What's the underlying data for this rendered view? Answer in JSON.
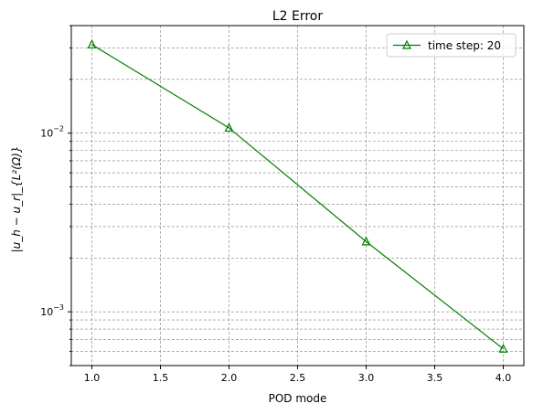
{
  "chart_data": {
    "type": "line",
    "title": "L2 Error",
    "xlabel": "POD mode",
    "ylabel": "|u_h − u_r|_{L²(Ω)}",
    "yscale": "log",
    "xlim": [
      0.85,
      4.15
    ],
    "ylim": [
      0.0005,
      0.04
    ],
    "x_ticks": [
      "1.0",
      "1.5",
      "2.0",
      "2.5",
      "3.0",
      "3.5",
      "4.0"
    ],
    "y_tick_labels": [
      {
        "base": "10",
        "exp": "−3"
      },
      {
        "base": "10",
        "exp": "−2"
      }
    ],
    "grid": true,
    "legend_position": "top-right",
    "series": [
      {
        "name": "time step: 20",
        "color": "#008000",
        "marker": "triangle",
        "x": [
          1,
          2,
          3,
          4
        ],
        "y": [
          0.0313,
          0.0107,
          0.00247,
          0.00062
        ]
      }
    ]
  }
}
